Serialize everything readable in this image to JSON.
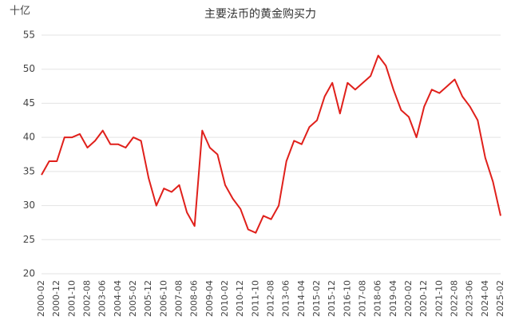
{
  "chart_data": {
    "type": "line",
    "title": "主要法币的黄金购买力",
    "y_unit": "十亿",
    "categories": [
      "2000-02",
      null,
      "2000-12",
      null,
      "2001-10",
      null,
      "2002-08",
      null,
      "2003-06",
      null,
      "2004-04",
      null,
      "2005-02",
      null,
      "2005-12",
      null,
      "2006-10",
      null,
      "2007-08",
      null,
      "2008-06",
      null,
      "2009-04",
      null,
      "2010-02",
      null,
      "2010-12",
      null,
      "2011-10",
      null,
      "2012-08",
      null,
      "2013-06",
      null,
      "2014-04",
      null,
      "2015-02",
      null,
      "2015-12",
      null,
      "2016-10",
      null,
      "2017-08",
      null,
      "2018-06",
      null,
      "2019-04",
      null,
      "2020-02",
      null,
      "2020-12",
      null,
      "2021-10",
      null,
      "2022-08",
      null,
      "2023-06",
      null,
      "2024-04",
      null,
      "2025-02"
    ],
    "values": [
      34.5,
      36.5,
      36.5,
      40,
      40,
      40.5,
      38.5,
      39.5,
      41,
      39,
      39,
      38.5,
      40,
      39.5,
      34,
      30,
      32.5,
      32,
      33,
      29,
      27,
      41,
      38.5,
      37.5,
      33,
      31,
      29.5,
      26.5,
      26,
      28.5,
      28,
      30,
      36.5,
      39.5,
      39,
      41.5,
      42.5,
      46,
      48,
      43.5,
      48,
      47,
      48,
      49,
      52,
      50.5,
      47,
      44,
      43,
      40,
      44.5,
      47,
      46.5,
      47.5,
      48.5,
      46,
      44.5,
      42.5,
      37,
      33.5,
      28.5
    ],
    "color": "#e0201b",
    "ylim": [
      20,
      55
    ],
    "yticks": [
      20,
      25,
      30,
      35,
      40,
      45,
      50,
      55
    ],
    "grid": true
  }
}
